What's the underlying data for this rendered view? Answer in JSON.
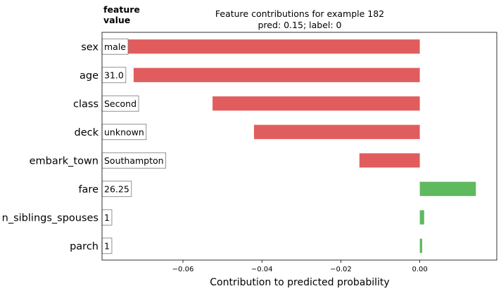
{
  "chart_data": {
    "type": "bar",
    "orientation": "horizontal",
    "title": "Feature contributions for example 182",
    "subtitle": "pred: 0.15; label: 0",
    "header": "feature\nvalue",
    "xlabel": "Contribution to predicted probability",
    "xlim": [
      -0.0805,
      0.0195
    ],
    "xticks": [
      -0.06,
      -0.04,
      -0.02,
      0.0
    ],
    "xtick_labels": [
      "−0.06",
      "−0.04",
      "−0.02",
      "0.00"
    ],
    "grid": false,
    "categories": [
      "sex",
      "age",
      "class",
      "deck",
      "embark_town",
      "fare",
      "n_siblings_spouses",
      "parch"
    ],
    "feature_values": [
      "male",
      "31.0",
      "Second",
      "unknown",
      "Southampton",
      "26.25",
      "1",
      "1"
    ],
    "values": [
      -0.0755,
      -0.0725,
      -0.0525,
      -0.042,
      -0.0153,
      0.0142,
      0.0011,
      0.0006
    ],
    "colors": {
      "negative": "#e15d5d",
      "positive": "#5fb95f"
    }
  }
}
